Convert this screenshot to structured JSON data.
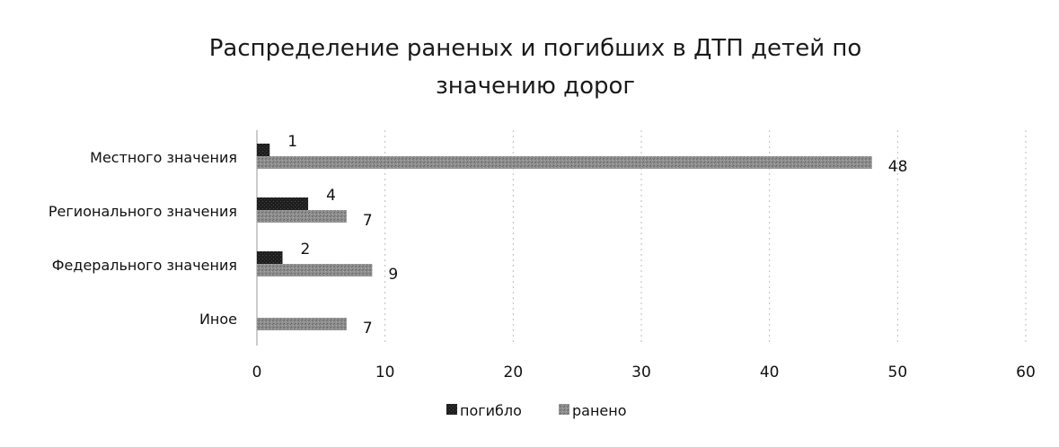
{
  "chart_data": {
    "type": "bar",
    "orientation": "horizontal",
    "title_line1": "Распределение раненых и погибших в ДТП детей по",
    "title_line2": "значению дорог",
    "categories": [
      "Местного значения",
      "Регионального значения",
      "Федерального значения",
      "Иное"
    ],
    "series": [
      {
        "name": "погибло",
        "values": [
          1,
          4,
          2,
          null
        ],
        "color": "#1a1a1a"
      },
      {
        "name": "ранено",
        "values": [
          48,
          7,
          9,
          7
        ],
        "color": "#8c8c8c"
      }
    ],
    "xlim": [
      0,
      60
    ],
    "xticks": [
      "0",
      "10",
      "20",
      "30",
      "40",
      "50",
      "60"
    ],
    "grid": true,
    "legend_position": "bottom"
  }
}
